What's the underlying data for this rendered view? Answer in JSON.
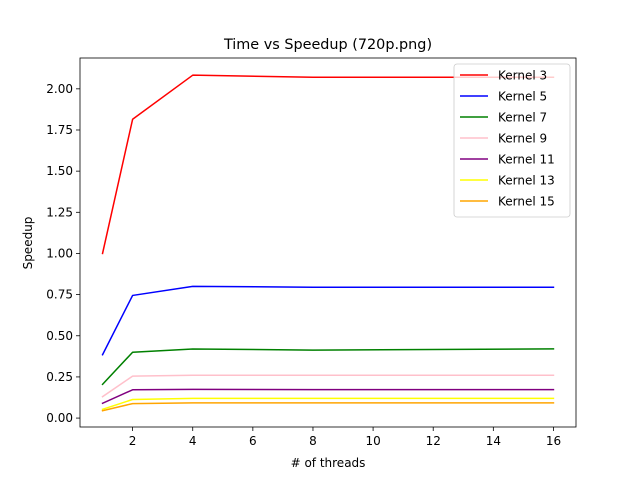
{
  "chart_data": {
    "type": "line",
    "title": "Time vs Speedup (720p.png)",
    "xlabel": "# of threads",
    "ylabel": "Speedup",
    "x": [
      1,
      2,
      4,
      8,
      16
    ],
    "xlim": [
      0.25,
      16.75
    ],
    "ylim": [
      -0.0542,
      2.1873
    ],
    "xticks": [
      2,
      4,
      6,
      8,
      10,
      12,
      14,
      16
    ],
    "xtick_labels": [
      "2",
      "4",
      "6",
      "8",
      "10",
      "12",
      "14",
      "16"
    ],
    "yticks": [
      0.0,
      0.25,
      0.5,
      0.75,
      1.0,
      1.25,
      1.5,
      1.75,
      2.0
    ],
    "ytick_labels": [
      "0.00",
      "0.25",
      "0.50",
      "0.75",
      "1.00",
      "1.25",
      "1.50",
      "1.75",
      "2.00"
    ],
    "grid": false,
    "legend_position": "top-right",
    "series": [
      {
        "name": "Kernel 3",
        "color": "#ff0000",
        "values": [
          1.0,
          1.815,
          2.083,
          2.07,
          2.07
        ]
      },
      {
        "name": "Kernel 5",
        "color": "#0000ff",
        "values": [
          0.385,
          0.745,
          0.8,
          0.795,
          0.795
        ]
      },
      {
        "name": "Kernel 7",
        "color": "#008000",
        "values": [
          0.205,
          0.4,
          0.42,
          0.413,
          0.42
        ]
      },
      {
        "name": "Kernel 9",
        "color": "#ffc0cb",
        "values": [
          0.13,
          0.255,
          0.26,
          0.26,
          0.26
        ]
      },
      {
        "name": "Kernel 11",
        "color": "#800080",
        "values": [
          0.09,
          0.172,
          0.174,
          0.173,
          0.173
        ]
      },
      {
        "name": "Kernel 13",
        "color": "#ffff00",
        "values": [
          0.053,
          0.113,
          0.12,
          0.12,
          0.12
        ]
      },
      {
        "name": "Kernel 15",
        "color": "#ffa500",
        "values": [
          0.045,
          0.088,
          0.092,
          0.092,
          0.092
        ]
      }
    ]
  }
}
